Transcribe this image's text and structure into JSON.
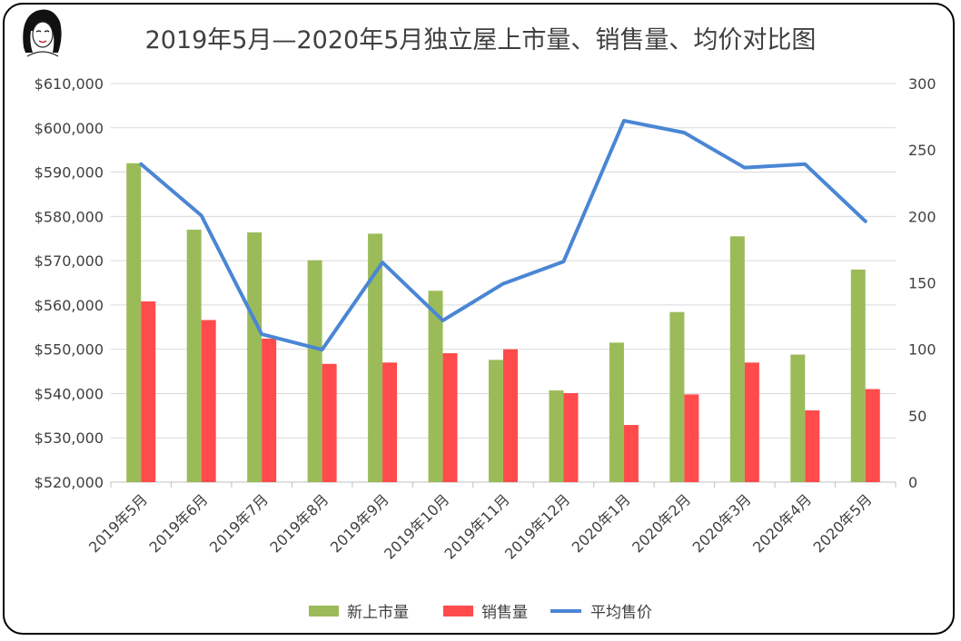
{
  "chart_data": {
    "type": "bar",
    "title": "2019年5月—2020年5月独立屋上市量、销售量、均价对比图",
    "categories": [
      "2019年5月",
      "2019年6月",
      "2019年7月",
      "2019年8月",
      "2019年9月",
      "2019年10月",
      "2019年11月",
      "2019年12月",
      "2020年1月",
      "2020年2月",
      "2020年3月",
      "2020年4月",
      "2020年5月"
    ],
    "series": [
      {
        "name": "新上市量",
        "type": "bar",
        "axis": "right",
        "color": "#9BBB59",
        "values": [
          240,
          190,
          188,
          167,
          187,
          144,
          92,
          69,
          105,
          128,
          185,
          96,
          160
        ]
      },
      {
        "name": "销售量",
        "type": "bar",
        "axis": "right",
        "color": "#FF4B4B",
        "values": [
          136,
          122,
          108,
          89,
          90,
          97,
          100,
          67,
          43,
          66,
          90,
          54,
          70
        ]
      },
      {
        "name": "平均售价",
        "type": "line",
        "axis": "left",
        "color": "#4A86D4",
        "values": [
          591800,
          580200,
          553400,
          549900,
          569600,
          556500,
          564800,
          569800,
          601600,
          598900,
          591000,
          591800,
          578900
        ]
      }
    ],
    "left_axis": {
      "ylim": [
        520000,
        610000
      ],
      "ticks": [
        "$520,000",
        "$530,000",
        "$540,000",
        "$550,000",
        "$560,000",
        "$570,000",
        "$580,000",
        "$590,000",
        "$600,000",
        "$610,000"
      ]
    },
    "right_axis": {
      "ylim": [
        0,
        300
      ],
      "ticks": [
        "0",
        "50",
        "100",
        "150",
        "200",
        "250",
        "300"
      ]
    },
    "grid": true,
    "legend": "bottom"
  },
  "avatar": "woman-portrait-icon"
}
